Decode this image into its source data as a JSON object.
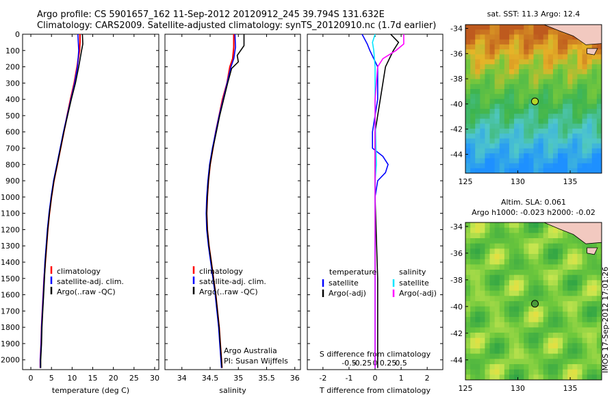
{
  "header": {
    "line1": "Argo profile: CS 5901657_162 11-Sep-2012 20120912_245 39.794S 131.632E",
    "line2": "Climatology: CARS2009. Satellite-adjusted climatology: synTS_20120910.nc (1.7d earlier)"
  },
  "footer_vertical": "IMOS 17-Sep-2012 17:01:26",
  "colors": {
    "climatology": "#ff0000",
    "satellite": "#0000ff",
    "argo": "#000000",
    "salinity_sat": "#00e5ff",
    "salinity_argo": "#ff00ff"
  },
  "chart_data": [
    {
      "id": "temperature",
      "type": "line",
      "xlabel": "temperature (deg C)",
      "ylabel": "",
      "xlim": [
        -2,
        31
      ],
      "ylim": [
        2060,
        0
      ],
      "xticks": [
        0,
        5,
        10,
        15,
        20,
        25,
        30
      ],
      "yticks": [
        0,
        100,
        200,
        300,
        400,
        500,
        600,
        700,
        800,
        900,
        1000,
        1100,
        1200,
        1300,
        1400,
        1500,
        1600,
        1700,
        1800,
        1900,
        2000
      ],
      "legend": [
        "climatology",
        "satellite-adj. clim.",
        "Argo(..raw -QC)"
      ],
      "series": [
        {
          "name": "climatology",
          "color": "#ff0000",
          "points": [
            [
              11.9,
              0
            ],
            [
              11.9,
              50
            ],
            [
              11.8,
              100
            ],
            [
              11.2,
              200
            ],
            [
              10.5,
              300
            ],
            [
              9.6,
              400
            ],
            [
              8.8,
              500
            ],
            [
              8,
              600
            ],
            [
              7.2,
              700
            ],
            [
              6.4,
              800
            ],
            [
              5.6,
              900
            ],
            [
              5,
              1000
            ],
            [
              4.5,
              1100
            ],
            [
              4.1,
              1200
            ],
            [
              3.8,
              1300
            ],
            [
              3.5,
              1400
            ],
            [
              3.2,
              1500
            ],
            [
              3,
              1600
            ],
            [
              2.8,
              1700
            ],
            [
              2.6,
              1800
            ],
            [
              2.5,
              1900
            ],
            [
              2.3,
              2000
            ],
            [
              2.3,
              2050
            ]
          ]
        },
        {
          "name": "satellite-adj. clim.",
          "color": "#0000ff",
          "points": [
            [
              11.4,
              0
            ],
            [
              11.5,
              50
            ],
            [
              11.6,
              100
            ],
            [
              11.3,
              200
            ],
            [
              10.6,
              300
            ],
            [
              9.7,
              400
            ],
            [
              8.8,
              500
            ],
            [
              7.9,
              600
            ],
            [
              7.1,
              700
            ],
            [
              6.3,
              800
            ],
            [
              5.5,
              900
            ],
            [
              4.9,
              1000
            ],
            [
              4.4,
              1100
            ],
            [
              4,
              1200
            ],
            [
              3.7,
              1300
            ],
            [
              3.4,
              1400
            ],
            [
              3.2,
              1500
            ],
            [
              3,
              1600
            ],
            [
              2.8,
              1700
            ],
            [
              2.6,
              1800
            ],
            [
              2.5,
              1900
            ],
            [
              2.3,
              2000
            ],
            [
              2.3,
              2050
            ]
          ]
        },
        {
          "name": "Argo(..raw -QC)",
          "color": "#000000",
          "points": [
            [
              12.5,
              0
            ],
            [
              12.6,
              60
            ],
            [
              12.3,
              100
            ],
            [
              11.6,
              200
            ],
            [
              10.8,
              300
            ],
            [
              9.8,
              400
            ],
            [
              8.9,
              500
            ],
            [
              8,
              600
            ],
            [
              7.2,
              700
            ],
            [
              6.4,
              800
            ],
            [
              5.6,
              900
            ],
            [
              5,
              1000
            ],
            [
              4.5,
              1100
            ],
            [
              4.1,
              1200
            ],
            [
              3.8,
              1300
            ],
            [
              3.5,
              1400
            ],
            [
              3.3,
              1500
            ],
            [
              3.1,
              1600
            ],
            [
              2.9,
              1700
            ],
            [
              2.7,
              1800
            ],
            [
              2.6,
              1900
            ],
            [
              2.4,
              2000
            ],
            [
              2.4,
              2050
            ]
          ]
        }
      ]
    },
    {
      "id": "salinity",
      "type": "line",
      "xlabel": "salinity",
      "ylabel": "",
      "xlim": [
        33.7,
        36.1
      ],
      "ylim": [
        2060,
        0
      ],
      "xticks": [
        34,
        34.5,
        35,
        35.5,
        36
      ],
      "legend": [
        "climatology",
        "satellite-adj. clim.",
        "Argo(..raw -QC)"
      ],
      "annotation": [
        "Argo Australia",
        "PI: Susan Wijffels"
      ],
      "series": [
        {
          "name": "climatology",
          "color": "#ff0000",
          "points": [
            [
              34.92,
              0
            ],
            [
              34.92,
              80
            ],
            [
              34.9,
              150
            ],
            [
              34.85,
              200
            ],
            [
              34.8,
              300
            ],
            [
              34.72,
              400
            ],
            [
              34.66,
              500
            ],
            [
              34.6,
              600
            ],
            [
              34.55,
              700
            ],
            [
              34.5,
              800
            ],
            [
              34.47,
              900
            ],
            [
              34.45,
              1000
            ],
            [
              34.44,
              1100
            ],
            [
              34.45,
              1200
            ],
            [
              34.48,
              1300
            ],
            [
              34.52,
              1400
            ],
            [
              34.56,
              1500
            ],
            [
              34.6,
              1600
            ],
            [
              34.63,
              1700
            ],
            [
              34.66,
              1800
            ],
            [
              34.68,
              1900
            ],
            [
              34.7,
              2000
            ],
            [
              34.71,
              2050
            ]
          ]
        },
        {
          "name": "satellite-adj. clim.",
          "color": "#0000ff",
          "points": [
            [
              34.94,
              0
            ],
            [
              34.95,
              80
            ],
            [
              34.92,
              150
            ],
            [
              34.87,
              200
            ],
            [
              34.8,
              300
            ],
            [
              34.73,
              400
            ],
            [
              34.66,
              500
            ],
            [
              34.6,
              600
            ],
            [
              34.54,
              700
            ],
            [
              34.49,
              800
            ],
            [
              34.46,
              900
            ],
            [
              34.44,
              1000
            ],
            [
              34.43,
              1100
            ],
            [
              34.44,
              1200
            ],
            [
              34.47,
              1300
            ],
            [
              34.51,
              1400
            ],
            [
              34.55,
              1500
            ],
            [
              34.59,
              1600
            ],
            [
              34.62,
              1700
            ],
            [
              34.65,
              1800
            ],
            [
              34.67,
              1900
            ],
            [
              34.69,
              2000
            ],
            [
              34.7,
              2050
            ]
          ]
        },
        {
          "name": "Argo(..raw -QC)",
          "color": "#000000",
          "points": [
            [
              35.1,
              0
            ],
            [
              35.1,
              70
            ],
            [
              34.98,
              130
            ],
            [
              35,
              170
            ],
            [
              34.88,
              210
            ],
            [
              34.81,
              300
            ],
            [
              34.74,
              400
            ],
            [
              34.67,
              500
            ],
            [
              34.61,
              600
            ],
            [
              34.55,
              700
            ],
            [
              34.5,
              800
            ],
            [
              34.47,
              900
            ],
            [
              34.45,
              1000
            ],
            [
              34.44,
              1100
            ],
            [
              34.45,
              1200
            ],
            [
              34.48,
              1300
            ],
            [
              34.52,
              1400
            ],
            [
              34.56,
              1500
            ],
            [
              34.6,
              1600
            ],
            [
              34.63,
              1700
            ],
            [
              34.66,
              1800
            ],
            [
              34.68,
              1900
            ],
            [
              34.7,
              2000
            ],
            [
              34.71,
              2050
            ]
          ]
        }
      ]
    },
    {
      "id": "difference",
      "type": "line",
      "xlabel": "T difference from climatology",
      "xlabel2": "S difference from climatology",
      "xlim": [
        -2.6,
        2.6
      ],
      "ylim": [
        2060,
        0
      ],
      "xticks": [
        -2,
        -1,
        0,
        1,
        2
      ],
      "xticks2": [
        -0.5,
        -0.25,
        0,
        0.25,
        0.5
      ],
      "legend_titles": [
        "temperature",
        "salinity"
      ],
      "legend_left": [
        "satellite",
        "Argo(-adj)"
      ],
      "legend_right": [
        "satellite",
        "Argo(-adj)"
      ],
      "series": [
        {
          "name": "temperature satellite",
          "color": "#0000ff",
          "points": [
            [
              -0.5,
              0
            ],
            [
              -0.3,
              60
            ],
            [
              -0.2,
              100
            ],
            [
              0.1,
              200
            ],
            [
              0.1,
              300
            ],
            [
              0.1,
              400
            ],
            [
              0,
              500
            ],
            [
              -0.1,
              600
            ],
            [
              -0.1,
              700
            ],
            [
              0.3,
              750
            ],
            [
              0.5,
              800
            ],
            [
              0.4,
              850
            ],
            [
              0.1,
              900
            ],
            [
              0,
              1000
            ],
            [
              0,
              1500
            ],
            [
              0,
              2050
            ]
          ]
        },
        {
          "name": "temperature Argo(-adj)",
          "color": "#000000",
          "points": [
            [
              0.6,
              0
            ],
            [
              0.9,
              50
            ],
            [
              0.7,
              100
            ],
            [
              0.4,
              200
            ],
            [
              0.3,
              300
            ],
            [
              0.2,
              400
            ],
            [
              0.1,
              500
            ],
            [
              0,
              600
            ],
            [
              0,
              1000
            ],
            [
              0.1,
              1500
            ],
            [
              0.1,
              2050
            ]
          ]
        },
        {
          "name": "salinity satellite",
          "color": "#00e5ff",
          "points": [
            [
              0,
              0
            ],
            [
              -0.1,
              50
            ],
            [
              -0.05,
              100
            ],
            [
              0,
              200
            ],
            [
              0,
              500
            ],
            [
              0.05,
              800
            ],
            [
              0,
              900
            ],
            [
              0,
              1500
            ],
            [
              0,
              2050
            ]
          ]
        },
        {
          "name": "salinity Argo(-adj)",
          "color": "#ff00ff",
          "points": [
            [
              1.1,
              0
            ],
            [
              1.1,
              60
            ],
            [
              0.8,
              100
            ],
            [
              0.3,
              150
            ],
            [
              0.1,
              200
            ],
            [
              0,
              400
            ],
            [
              0,
              1500
            ],
            [
              0,
              2050
            ]
          ]
        }
      ]
    },
    {
      "id": "sst-map",
      "type": "heatmap",
      "title": "sat. SST: 11.3 Argo: 12.4",
      "xlim": [
        125,
        138
      ],
      "ylim": [
        -45.5,
        -33.7
      ],
      "xticks": [
        125,
        130,
        135
      ],
      "yticks": [
        -34,
        -36,
        -38,
        -40,
        -42,
        -44
      ],
      "marker": {
        "lon": 131.632,
        "lat": -39.794
      }
    },
    {
      "id": "sla-map",
      "type": "heatmap",
      "title": "Altim. SLA: 0.061",
      "subtitle": "Argo h1000: -0.023 h2000: -0.02",
      "xlim": [
        125,
        138
      ],
      "ylim": [
        -45.5,
        -33.7
      ],
      "xticks": [
        125,
        130,
        135
      ],
      "yticks": [
        -34,
        -36,
        -38,
        -40,
        -42,
        -44
      ],
      "marker": {
        "lon": 131.632,
        "lat": -39.794
      }
    }
  ]
}
